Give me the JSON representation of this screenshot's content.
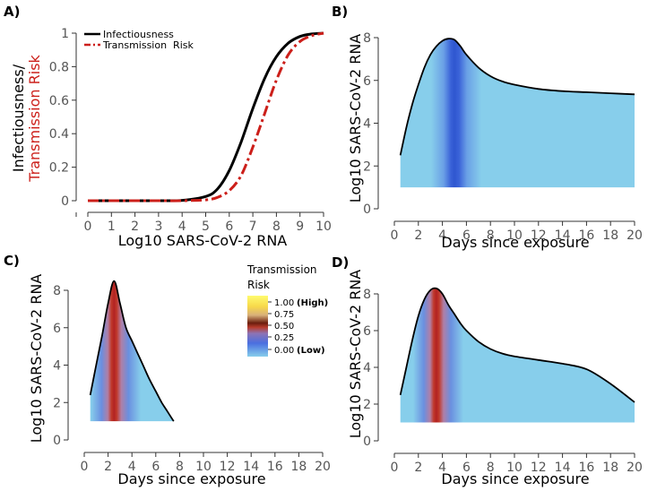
{
  "colors": {
    "infectiousness": "#000000",
    "transmission_risk": "#cc1f1a",
    "fill_low": "#87ceeb"
  },
  "chart_data": [
    {
      "panel": "A)",
      "type": "line",
      "ylabel_parts": [
        "Infectiousness/",
        "Transmission Risk"
      ],
      "xlabel": "Log10 SARS-CoV-2 RNA",
      "xlim": [
        0,
        10
      ],
      "ylim": [
        0,
        1
      ],
      "x_ticks": [
        "0",
        "1",
        "2",
        "3",
        "4",
        "5",
        "6",
        "7",
        "8",
        "9",
        "10"
      ],
      "y_ticks": [
        "0",
        "0.2",
        "0.4",
        "0.6",
        "0.8",
        "1"
      ],
      "legend": [
        "Infectiousness",
        "Transmission  Risk"
      ],
      "legend_position": "top-left",
      "series": [
        {
          "name": "Infectiousness",
          "x": [
            0,
            1,
            2,
            3,
            4,
            5,
            5.5,
            6,
            6.5,
            7,
            7.5,
            8,
            8.5,
            9,
            9.5,
            10
          ],
          "y": [
            0,
            0,
            0,
            0,
            0.002,
            0.025,
            0.07,
            0.18,
            0.35,
            0.55,
            0.73,
            0.86,
            0.94,
            0.98,
            0.995,
            1.0
          ]
        },
        {
          "name": "Transmission  Risk",
          "x": [
            0,
            1,
            2,
            3,
            4,
            5,
            5.5,
            6,
            6.5,
            7,
            7.5,
            8,
            8.5,
            9,
            9.5,
            10
          ],
          "y": [
            0,
            0,
            0,
            0,
            0,
            0.005,
            0.02,
            0.06,
            0.15,
            0.32,
            0.52,
            0.72,
            0.87,
            0.95,
            0.985,
            1.0
          ]
        }
      ]
    },
    {
      "panel": "B)",
      "type": "area",
      "xlabel": "Days since exposure",
      "ylabel": "Log10 SARS-CoV-2 RNA",
      "xlim": [
        0,
        20
      ],
      "ylim": [
        0,
        8
      ],
      "x_ticks": [
        "0",
        "2",
        "4",
        "6",
        "8",
        "10",
        "12",
        "14",
        "16",
        "18",
        "20"
      ],
      "y_ticks": [
        "0",
        "2",
        "4",
        "6",
        "8"
      ],
      "x": [
        0.5,
        1,
        1.5,
        2,
        2.5,
        3,
        3.5,
        4,
        4.5,
        5,
        5.5,
        6,
        7,
        8,
        9,
        10,
        12,
        14,
        16,
        18,
        20
      ],
      "y": [
        2.5,
        3.8,
        4.9,
        5.8,
        6.6,
        7.2,
        7.6,
        7.85,
        7.95,
        7.9,
        7.6,
        7.2,
        6.6,
        6.2,
        5.95,
        5.8,
        5.6,
        5.5,
        5.45,
        5.4,
        5.35
      ],
      "fill_floor": 1,
      "risk_peak_day": 5
    },
    {
      "panel": "C)",
      "type": "area",
      "xlabel": "Days since exposure",
      "ylabel": "Log10 SARS-CoV-2 RNA",
      "xlim": [
        0,
        20
      ],
      "ylim": [
        0,
        8
      ],
      "x_ticks": [
        "0",
        "2",
        "4",
        "6",
        "8",
        "10",
        "12",
        "14",
        "16",
        "18",
        "20"
      ],
      "y_ticks": [
        "0",
        "2",
        "4",
        "6",
        "8"
      ],
      "x": [
        0.5,
        1,
        1.5,
        2,
        2.5,
        3,
        3.5,
        4,
        4.5,
        5,
        5.5,
        6,
        6.5,
        7,
        7.5
      ],
      "y": [
        2.4,
        4.0,
        5.6,
        7.3,
        8.5,
        7.3,
        6.0,
        5.3,
        4.6,
        3.9,
        3.2,
        2.6,
        2.0,
        1.5,
        1.0
      ],
      "fill_floor": 1,
      "risk_peak_day": 2.5,
      "colorbar": {
        "title": "Transmission Risk",
        "ticks": [
          "1.00",
          "0.75",
          "0.50",
          "0.25",
          "0.00"
        ],
        "tick_notes": [
          "(High)",
          "",
          "",
          "",
          "(Low)"
        ]
      }
    },
    {
      "panel": "D)",
      "type": "area",
      "xlabel": "Days since exposure",
      "ylabel": "Log10 SARS-CoV-2 RNA",
      "xlim": [
        0,
        20
      ],
      "ylim": [
        0,
        8
      ],
      "x_ticks": [
        "0",
        "2",
        "4",
        "6",
        "8",
        "10",
        "12",
        "14",
        "16",
        "18",
        "20"
      ],
      "y_ticks": [
        "0",
        "2",
        "4",
        "6",
        "8"
      ],
      "x": [
        0.5,
        1,
        1.5,
        2,
        2.5,
        3,
        3.5,
        4,
        4.5,
        5,
        5.5,
        6,
        7,
        8,
        9,
        10,
        12,
        14,
        16,
        18,
        20
      ],
      "y": [
        2.5,
        4.0,
        5.5,
        6.8,
        7.7,
        8.2,
        8.3,
        8.0,
        7.4,
        6.9,
        6.4,
        6.0,
        5.4,
        5.0,
        4.75,
        4.6,
        4.4,
        4.2,
        3.9,
        3.1,
        2.1
      ],
      "fill_floor": 1,
      "risk_peak_day": 3.5
    }
  ]
}
